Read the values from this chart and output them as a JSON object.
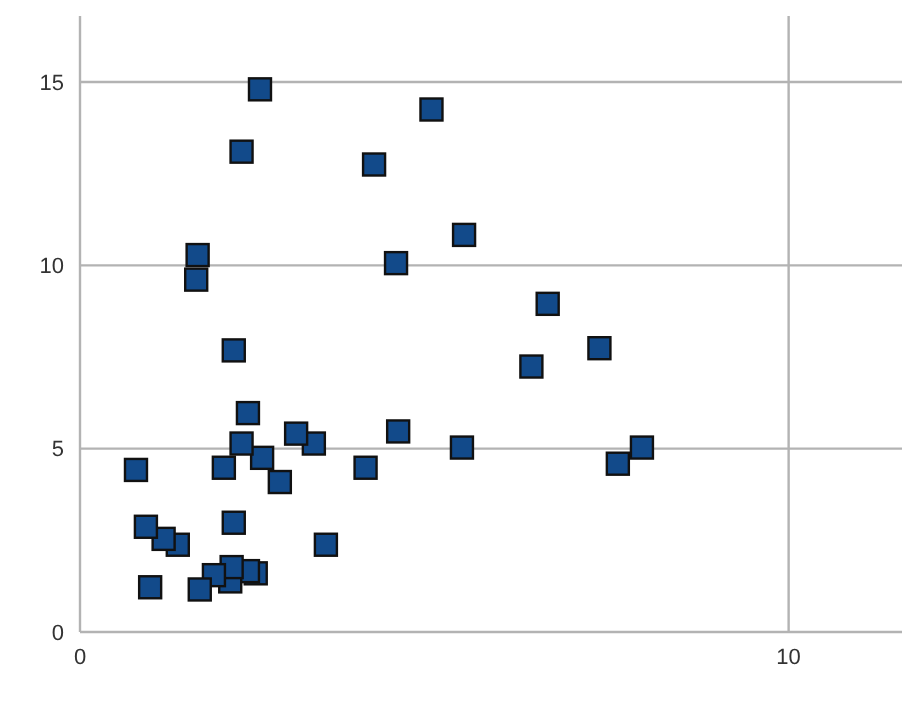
{
  "chart_data": {
    "type": "scatter",
    "xlim": [
      0,
      11.6
    ],
    "ylim": [
      0,
      16.8
    ],
    "xticks": [
      0,
      10
    ],
    "yticks": [
      0,
      5,
      10,
      15
    ],
    "grid": true,
    "marker": "square",
    "legend": false,
    "series": [
      {
        "color": "#124a8a",
        "x": [
          2.54,
          4.96,
          2.28,
          4.15,
          5.42,
          1.66,
          4.46,
          1.64,
          6.6,
          2.17,
          7.33,
          6.37,
          2.37,
          3.05,
          7.93,
          4.49,
          3.3,
          5.39,
          2.28,
          0.79,
          2.03,
          2.57,
          4.03,
          7.59,
          2.82,
          2.17,
          0.93,
          1.18,
          1.38,
          3.47,
          0.99,
          1.69,
          1.89,
          2.14,
          2.12,
          2.37,
          2.48
        ],
        "values": [
          14.8,
          14.25,
          13.1,
          12.75,
          10.83,
          10.28,
          10.06,
          9.61,
          8.95,
          7.68,
          7.74,
          7.24,
          5.97,
          5.41,
          5.03,
          5.47,
          5.14,
          5.03,
          5.14,
          4.42,
          4.48,
          4.75,
          4.48,
          4.59,
          4.09,
          2.98,
          2.87,
          2.54,
          2.38,
          2.38,
          1.22,
          1.16,
          1.55,
          1.77,
          1.38,
          1.66,
          1.6
        ]
      }
    ]
  }
}
